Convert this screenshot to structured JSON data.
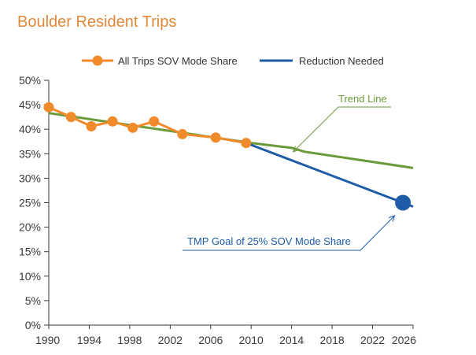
{
  "chart_data": {
    "type": "line",
    "title": "Boulder Resident Trips",
    "xlabel": "",
    "ylabel": "",
    "xlim": [
      1990,
      2026
    ],
    "ylim": [
      0,
      50
    ],
    "x_ticks": [
      "1990",
      "1994",
      "1998",
      "2002",
      "2006",
      "2010",
      "2014",
      "2018",
      "2022",
      "2026"
    ],
    "y_ticks": [
      "0%",
      "5%",
      "10%",
      "15%",
      "20%",
      "25%",
      "30%",
      "35%",
      "40%",
      "45%",
      "50%"
    ],
    "grid": false,
    "legend_position": "top",
    "series": [
      {
        "name": "All Trips SOV Mode Share",
        "color": "#f08a2b",
        "marker": "circle",
        "x": [
          1990,
          1992.2,
          1994.2,
          1996.3,
          1998.3,
          2000.4,
          2003.2,
          2006.5,
          2009.5
        ],
        "y": [
          44.5,
          42.5,
          40.6,
          41.6,
          40.3,
          41.6,
          39.0,
          38.3,
          37.2
        ]
      },
      {
        "name": "Reduction Needed",
        "color": "#1f5ca8",
        "marker": "none",
        "x": [
          2009.5,
          2025,
          2026
        ],
        "y": [
          37.2,
          25.0,
          24.2
        ]
      },
      {
        "name": "",
        "color": "#6a9a3a",
        "marker": "none",
        "x": [
          1990,
          2010,
          2014,
          2015.3,
          2026
        ],
        "y": [
          43.3,
          37.2,
          36.2,
          35.4,
          32.1
        ]
      }
    ],
    "highlight_point": {
      "x": 2025,
      "y": 25.0,
      "color": "#1f5ca8"
    },
    "annotations": [
      {
        "text": "Trend Line",
        "target_x": 2014,
        "target_y": 36.2,
        "color": "#6a9a3a"
      },
      {
        "text": "TMP Goal of 25% SOV Mode Share",
        "target_x": 2024.8,
        "target_y": 23.8,
        "color": "#1f5ca8"
      }
    ]
  }
}
